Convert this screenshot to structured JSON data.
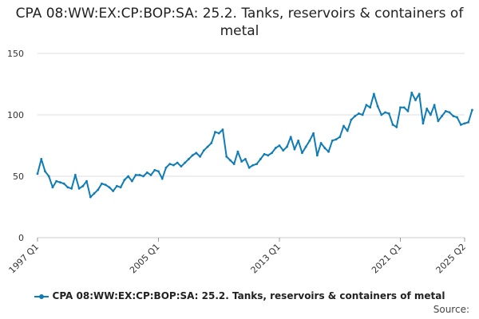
{
  "chart_data": {
    "type": "line",
    "title": "CPA 08:WW:EX:CP:BOP:SA: 25.2. Tanks, reservoirs & containers of metal",
    "xlabel": "",
    "ylabel": "",
    "ylim": [
      0,
      150
    ],
    "yticks": [
      "0",
      "50",
      "100",
      "150"
    ],
    "grid": true,
    "legend_position": "bottom",
    "x_ticks": [
      "1997 Q1",
      "2005 Q1",
      "2013 Q1",
      "2021 Q1",
      "2025 Q2"
    ],
    "x_start": "1997 Q1",
    "series": [
      {
        "name": "CPA 08:WW:EX:CP:BOP:SA: 25.2. Tanks, reservoirs & containers of metal",
        "color": "#0f7cb6",
        "values": [
          52,
          64,
          54,
          50,
          41,
          46,
          45,
          44,
          41,
          40,
          51,
          40,
          42,
          46,
          33,
          36,
          39,
          44,
          43,
          41,
          38,
          42,
          41,
          47,
          50,
          46,
          51,
          51,
          50,
          53,
          51,
          55,
          54,
          48,
          57,
          60,
          59,
          61,
          58,
          61,
          64,
          67,
          69,
          66,
          71,
          74,
          77,
          86,
          85,
          88,
          66,
          63,
          60,
          70,
          62,
          64,
          57,
          59,
          60,
          64,
          68,
          67,
          69,
          73,
          75,
          71,
          74,
          82,
          72,
          79,
          69,
          74,
          79,
          85,
          67,
          77,
          73,
          70,
          79,
          80,
          82,
          91,
          87,
          96,
          99,
          101,
          100,
          108,
          106,
          117,
          107,
          100,
          102,
          101,
          92,
          90,
          106,
          106,
          103,
          118,
          112,
          117,
          93,
          105,
          100,
          108,
          95,
          99,
          103,
          102,
          99,
          98,
          92,
          93,
          94,
          104
        ]
      }
    ]
  },
  "legend": {
    "label": "CPA 08:WW:EX:CP:BOP:SA: 25.2. Tanks, reservoirs & containers of metal"
  },
  "source": {
    "label": "Source:"
  }
}
